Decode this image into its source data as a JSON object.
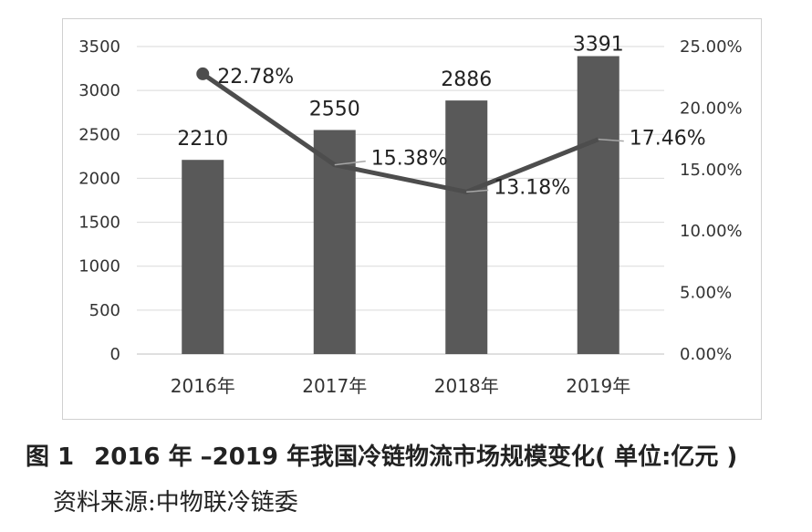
{
  "caption": {
    "figure_number": "图 1",
    "text": "2016 年 –2019 年我国冷链物流市场规模变化( 单位:亿元 )"
  },
  "source": "资料来源:中物联冷链委",
  "chart_data": {
    "type": "bar+line",
    "categories": [
      "2016年",
      "2017年",
      "2018年",
      "2019年"
    ],
    "series": [
      {
        "values": [
          2210,
          2550,
          2886,
          3391
        ],
        "labels": [
          "2210",
          "2550",
          "2886",
          "3391"
        ],
        "axis": "left",
        "type": "bar",
        "color": "#595959"
      },
      {
        "values": [
          22.78,
          15.38,
          13.18,
          17.46
        ],
        "labels": [
          "22.78%",
          "15.38%",
          "13.18%",
          "17.46%"
        ],
        "axis": "right",
        "type": "line",
        "color": "#4d4d4d"
      }
    ],
    "left_axis": {
      "ylim": [
        0,
        3500
      ],
      "ticks": [
        "0",
        "500",
        "1000",
        "1500",
        "2000",
        "2500",
        "3000",
        "3500"
      ]
    },
    "right_axis": {
      "ylim": [
        0,
        25
      ],
      "ticks": [
        "0.00%",
        "5.00%",
        "10.00%",
        "15.00%",
        "20.00%",
        "25.00%"
      ]
    },
    "grid": true,
    "legend": "none"
  }
}
